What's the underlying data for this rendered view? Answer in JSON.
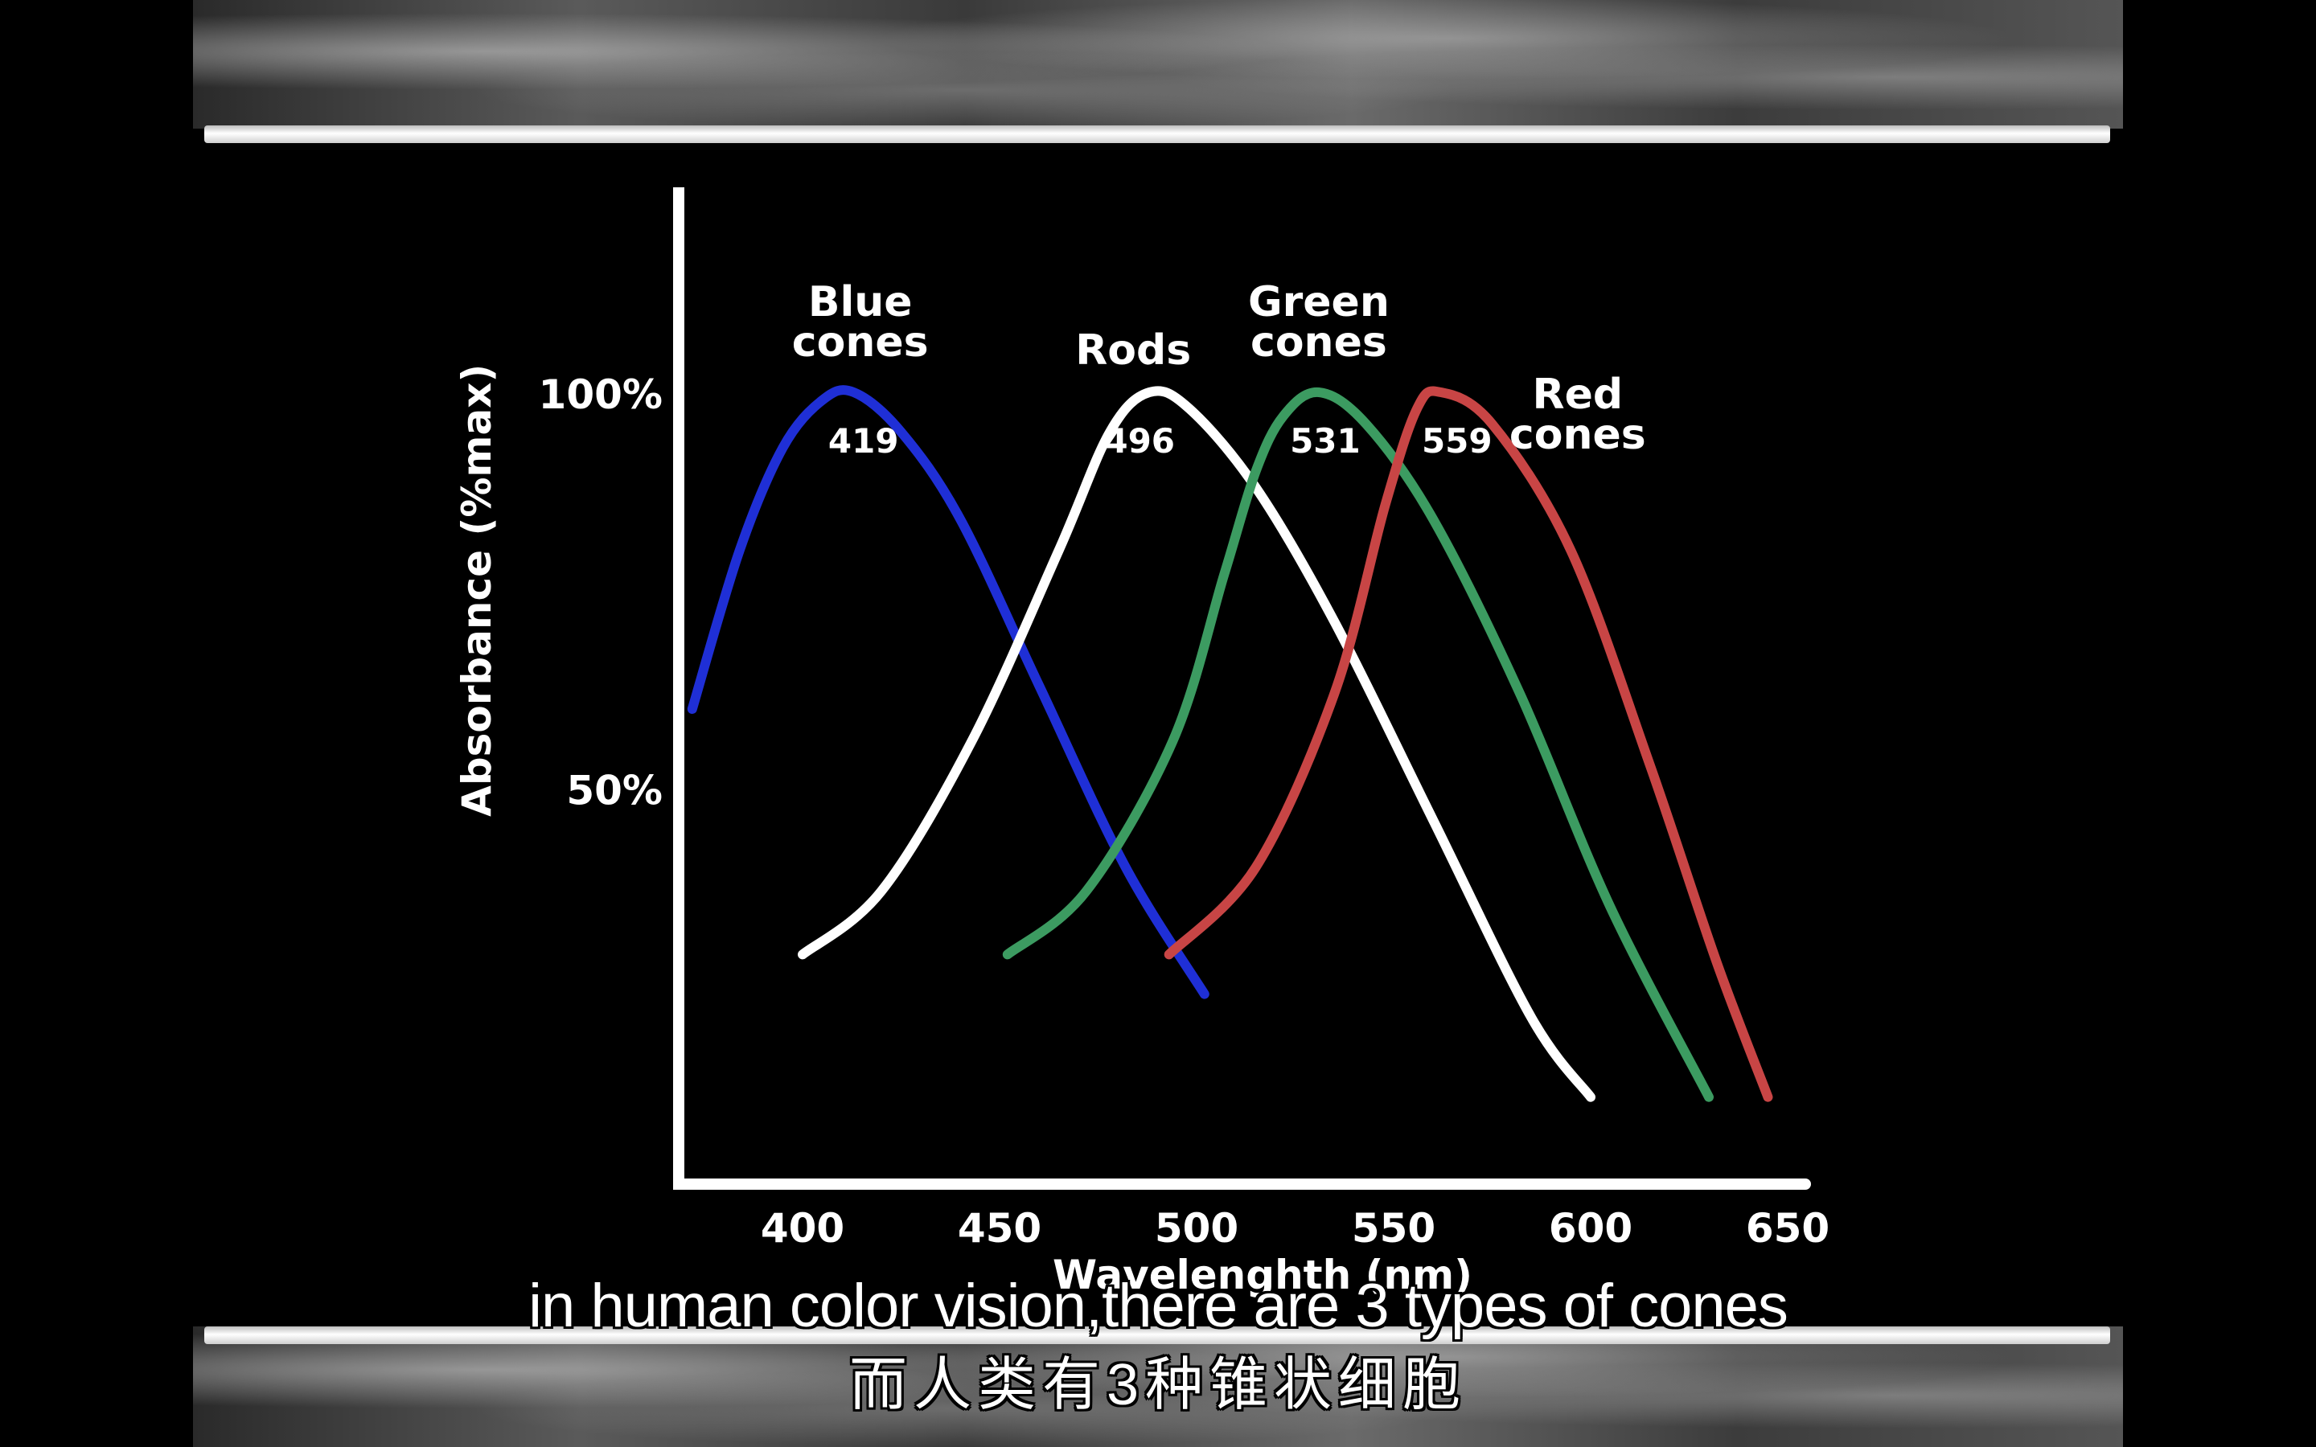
{
  "chart_data": {
    "type": "line",
    "xlabel": "Wavelenghth (nm)",
    "ylabel": "Absorbance (%max)",
    "x_ticks": [
      "400",
      "450",
      "500",
      "550",
      "600",
      "650"
    ],
    "y_ticks": [
      "100%",
      "50%"
    ],
    "xlim": [
      368,
      655
    ],
    "ylim": [
      0,
      125
    ],
    "series": [
      {
        "name_lines": [
          "Blue",
          "cones"
        ],
        "peak_label": "419",
        "color": "#1f2fd6",
        "points": [
          [
            372,
            60
          ],
          [
            384,
            80
          ],
          [
            395,
            93
          ],
          [
            405,
            99
          ],
          [
            413,
            100
          ],
          [
            425,
            95
          ],
          [
            440,
            84
          ],
          [
            460,
            63
          ],
          [
            482,
            40
          ],
          [
            502,
            24
          ]
        ]
      },
      {
        "name_lines": [
          "Rods"
        ],
        "peak_label": "496",
        "color": "#ffffff",
        "points": [
          [
            400,
            29
          ],
          [
            420,
            37
          ],
          [
            443,
            56
          ],
          [
            465,
            80
          ],
          [
            478,
            95
          ],
          [
            488,
            100
          ],
          [
            498,
            98
          ],
          [
            515,
            88
          ],
          [
            535,
            71
          ],
          [
            560,
            46
          ],
          [
            585,
            21
          ],
          [
            600,
            11
          ]
        ]
      },
      {
        "name_lines": [
          "Green",
          "cones"
        ],
        "peak_label": "531",
        "color": "#3c9b61",
        "points": [
          [
            452,
            29
          ],
          [
            472,
            37
          ],
          [
            494,
            56
          ],
          [
            507,
            77
          ],
          [
            515,
            90
          ],
          [
            522,
            97
          ],
          [
            531,
            100
          ],
          [
            543,
            96
          ],
          [
            560,
            84
          ],
          [
            582,
            62
          ],
          [
            605,
            35
          ],
          [
            630,
            11
          ]
        ]
      },
      {
        "name_lines": [
          "Red",
          "cones"
        ],
        "peak_label": "559",
        "color": "#c84545",
        "points": [
          [
            493,
            29
          ],
          [
            515,
            40
          ],
          [
            535,
            62
          ],
          [
            548,
            86
          ],
          [
            556,
            98
          ],
          [
            562,
            100
          ],
          [
            575,
            96
          ],
          [
            595,
            80
          ],
          [
            615,
            53
          ],
          [
            632,
            28
          ],
          [
            645,
            11
          ]
        ]
      }
    ]
  },
  "subtitles": {
    "english": "in human color vision,there are 3 types of cones",
    "chinese": "而人类有3种锥状细胞"
  }
}
